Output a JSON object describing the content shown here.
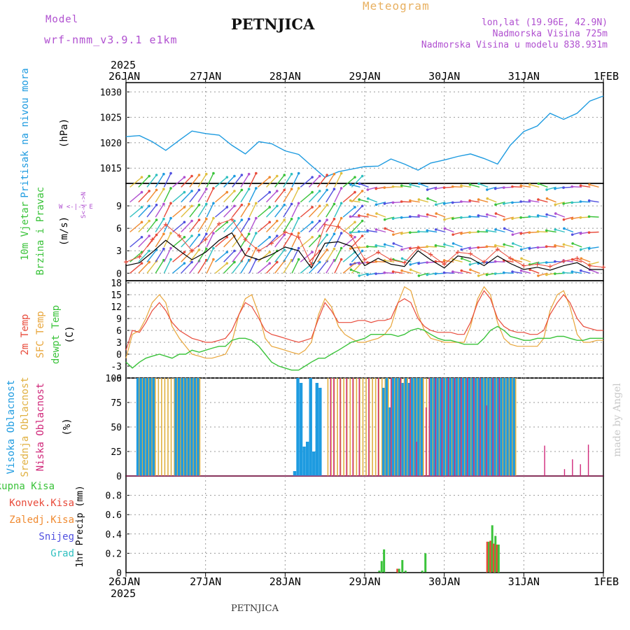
{
  "header": {
    "model_label": "Model",
    "model_value": "wrf-nmm_v3.9.1  e1km",
    "station": "PETNJICA",
    "product": "Meteogram",
    "lonlat": "lon,lat (19.96E, 42.9N)",
    "elevation": "Nadmorska Visina 725m",
    "model_elevation": "Nadmorska Visina u modelu 838.931m",
    "footer_station": "PETNJICA",
    "watermark": "made by Angel"
  },
  "time_axis": {
    "year_top": "2025",
    "year_bottom": "2025",
    "labels": [
      "26JAN",
      "27JAN",
      "28JAN",
      "29JAN",
      "30JAN",
      "31JAN",
      "1FEB"
    ]
  },
  "wind_compass": "W <-|-> E",
  "wind_compass_vertical": "S<-|->N",
  "colors": {
    "pressure": "#1e9be0",
    "temp2m": "#e84a3a",
    "sfc": "#e8a53a",
    "dewpt": "#3ac33a",
    "cloud_high": "#1e9be0",
    "cloud_mid": "#e0b040",
    "cloud_low": "#d0287a",
    "precip_total": "#3ac33a",
    "precip_conv": "#e84a3a",
    "precip_frz": "#f08a30",
    "precip_snow": "#5050e0",
    "precip_grad": "#30c0c0",
    "wind_speed": "#000000",
    "gust": "#e84a3a",
    "model_label": "#b050d0",
    "meteogram_label": "#e8b060"
  },
  "chart_data": [
    {
      "type": "line",
      "panel": "pressure",
      "ylabel_title": "Pritisak na nivou mora",
      "unit": "(hPa)",
      "ylim": [
        1012,
        1031
      ],
      "yticks": [
        1015,
        1020,
        1025,
        1030
      ],
      "x_days": [
        0,
        0.17,
        0.33,
        0.5,
        0.67,
        0.83,
        1.0,
        1.17,
        1.33,
        1.5,
        1.67,
        1.83,
        2.0,
        2.17,
        2.33,
        2.5,
        2.67,
        2.83,
        3.0,
        3.17,
        3.33,
        3.5,
        3.67,
        3.83,
        4.0,
        4.17,
        4.33,
        4.5,
        4.67,
        4.83,
        5.0,
        5.17,
        5.33,
        5.5,
        5.67,
        5.83,
        6.0
      ],
      "series": [
        {
          "values": [
            1021.2,
            1021.4,
            1020.2,
            1018.5,
            1020.5,
            1022.3,
            1021.8,
            1021.5,
            1019.5,
            1017.8,
            1020.2,
            1019.8,
            1018.4,
            1017.7,
            1015.5,
            1013.2,
            1014.3,
            1014.8,
            1015.3,
            1015.4,
            1016.8,
            1015.8,
            1014.6,
            1016.0,
            1016.6,
            1017.3,
            1017.8,
            1016.9,
            1015.8,
            1019.5,
            1022.2,
            1023.3,
            1025.8,
            1024.6,
            1025.8,
            1028.2,
            1029.2
          ]
        }
      ]
    },
    {
      "type": "line",
      "panel": "wind",
      "ylabel_title": "10m Vjetar",
      "ylabel_title2": "Brzina i Pravac",
      "unit": "(m/s)",
      "ylim": [
        -1,
        12
      ],
      "yticks": [
        0,
        3,
        6,
        9
      ],
      "x_days": [
        0,
        0.17,
        0.33,
        0.5,
        0.67,
        0.83,
        1.0,
        1.17,
        1.33,
        1.5,
        1.67,
        1.83,
        2.0,
        2.17,
        2.33,
        2.5,
        2.67,
        2.83,
        3.0,
        3.17,
        3.33,
        3.5,
        3.67,
        3.83,
        4.0,
        4.17,
        4.33,
        4.5,
        4.67,
        4.83,
        5.0,
        5.17,
        5.33,
        5.5,
        5.67,
        5.83,
        6.0
      ],
      "series": [
        {
          "name": "speed",
          "values": [
            1.0,
            1.4,
            2.8,
            4.4,
            3.0,
            1.8,
            2.8,
            4.4,
            5.4,
            2.4,
            1.8,
            2.5,
            3.5,
            3.0,
            0.7,
            4.0,
            4.2,
            3.6,
            1.0,
            2.0,
            1.2,
            0.9,
            3.0,
            1.8,
            0.7,
            2.3,
            2.0,
            1.0,
            2.3,
            1.3,
            0.5,
            0.8,
            0.4,
            1.0,
            1.4,
            0.5,
            0.5
          ]
        },
        {
          "name": "gust",
          "values": [
            1.5,
            2.2,
            4.5,
            6.5,
            5.0,
            3.0,
            4.5,
            6.6,
            7.2,
            4.5,
            3.0,
            4.0,
            5.5,
            4.8,
            1.2,
            6.5,
            6.2,
            5.0,
            1.8,
            2.8,
            1.8,
            1.4,
            3.4,
            2.5,
            1.2,
            2.8,
            2.6,
            1.5,
            3.2,
            2.0,
            1.0,
            1.2,
            0.9,
            1.6,
            2.0,
            1.0,
            0.8
          ]
        }
      ],
      "arrow_rows": [
        0,
        1.5,
        3.5,
        5.5,
        7.5,
        9.5,
        11.5
      ]
    },
    {
      "type": "line",
      "panel": "temperature",
      "ylabel_title": "2m Temp",
      "ylabel_title2": "SFC Temp",
      "ylabel_title3": "dewpt Temp",
      "unit": "(C)",
      "ylim": [
        -6,
        18
      ],
      "yticks": [
        -6,
        -3,
        0,
        3,
        6,
        9,
        12,
        15,
        18
      ],
      "x_days": [
        0,
        0.08,
        0.17,
        0.25,
        0.33,
        0.42,
        0.5,
        0.58,
        0.67,
        0.75,
        0.83,
        0.92,
        1.0,
        1.08,
        1.17,
        1.25,
        1.33,
        1.42,
        1.5,
        1.58,
        1.67,
        1.75,
        1.83,
        1.92,
        2.0,
        2.08,
        2.17,
        2.25,
        2.33,
        2.42,
        2.5,
        2.58,
        2.67,
        2.75,
        2.83,
        2.92,
        3.0,
        3.08,
        3.17,
        3.25,
        3.33,
        3.42,
        3.5,
        3.58,
        3.67,
        3.75,
        3.83,
        3.92,
        4.0,
        4.08,
        4.17,
        4.25,
        4.33,
        4.42,
        4.5,
        4.58,
        4.67,
        4.75,
        4.83,
        4.92,
        5.0,
        5.08,
        5.17,
        5.25,
        5.33,
        5.42,
        5.5,
        5.58,
        5.67,
        5.75,
        5.83,
        5.92,
        6.0
      ],
      "series": [
        {
          "name": "2m",
          "values": [
            1,
            6,
            5.5,
            8,
            11,
            13,
            11,
            8,
            6,
            5,
            4,
            3.5,
            3,
            3,
            3.5,
            4,
            6,
            10,
            13,
            12,
            9,
            6,
            5,
            4.5,
            4,
            3.5,
            3,
            3.5,
            4,
            9,
            13,
            11,
            8,
            8,
            8,
            8.5,
            8.5,
            8,
            8.5,
            8.5,
            9,
            13,
            14,
            13,
            9,
            7,
            6,
            5.5,
            5.5,
            5.5,
            5,
            5,
            8,
            13,
            16,
            14,
            9,
            7,
            6,
            5.5,
            5.5,
            5,
            5,
            6,
            10,
            13,
            15,
            13,
            9,
            7,
            6.5,
            6,
            6
          ]
        },
        {
          "name": "sfc",
          "values": [
            -1,
            5,
            6,
            9,
            13,
            15,
            13,
            7,
            4,
            2,
            0,
            -0.5,
            -1,
            -1,
            -0.5,
            0,
            3,
            10,
            14,
            15,
            10,
            4,
            2,
            1.5,
            1,
            0.5,
            0,
            1,
            3,
            10,
            14,
            12,
            7,
            5,
            4,
            3,
            3,
            3.5,
            4,
            5,
            7,
            13,
            17,
            16,
            10,
            6,
            4,
            3.5,
            3,
            3,
            3,
            3,
            7,
            14,
            17,
            15,
            8,
            4,
            2.5,
            2,
            2,
            2,
            2,
            4,
            11,
            15,
            16,
            12,
            5,
            3,
            3,
            3.5,
            3.5
          ]
        },
        {
          "name": "dewpt",
          "values": [
            -2,
            -3.5,
            -2,
            -1,
            -0.5,
            0,
            -0.5,
            -1,
            0,
            0,
            1,
            0.5,
            1,
            1.5,
            2,
            2,
            3.5,
            4,
            4,
            3.5,
            2,
            0,
            -2,
            -3,
            -3.5,
            -4,
            -4,
            -3,
            -2,
            -1,
            -1,
            0,
            1,
            2,
            3,
            3.5,
            4,
            5,
            5,
            5,
            5,
            4.5,
            5,
            6,
            6.5,
            6,
            5,
            4,
            3.5,
            3.5,
            3,
            2.5,
            2.5,
            2.5,
            4,
            6,
            7,
            6,
            4.5,
            4,
            3.5,
            3.5,
            4,
            4,
            4,
            4.5,
            4.5,
            4,
            3.5,
            3.5,
            4,
            4,
            4
          ]
        }
      ]
    },
    {
      "type": "bar",
      "panel": "clouds",
      "ylabel_title": "Visoka Oblacnost",
      "ylabel_title2": "Srednja Oblacnost",
      "ylabel_title3": "Niska Oblacnost",
      "unit": "(%)",
      "ylim": [
        0,
        100
      ],
      "yticks": [
        0,
        25,
        50,
        75,
        100
      ],
      "x_days": [
        0.15,
        0.19,
        0.23,
        0.27,
        0.31,
        0.35,
        0.39,
        0.43,
        0.47,
        0.51,
        0.55,
        0.59,
        0.63,
        0.67,
        0.71,
        0.75,
        0.79,
        0.83,
        0.87,
        0.91,
        2.12,
        2.16,
        2.2,
        2.24,
        2.28,
        2.32,
        2.36,
        2.4,
        2.44,
        2.52,
        2.56,
        2.6,
        2.64,
        2.68,
        2.72,
        2.76,
        2.8,
        2.84,
        2.88,
        2.92,
        2.96,
        3.0,
        3.04,
        3.08,
        3.12,
        3.16,
        3.2,
        3.24,
        3.28,
        3.32,
        3.36,
        3.4,
        3.44,
        3.48,
        3.52,
        3.56,
        3.6,
        3.64,
        3.68,
        3.72,
        3.76,
        3.8,
        3.84,
        3.88,
        3.92,
        3.96,
        4.0,
        4.04,
        4.08,
        4.12,
        4.16,
        4.2,
        4.24,
        4.28,
        4.32,
        4.36,
        4.4,
        4.44,
        4.48,
        4.52,
        4.56,
        4.6,
        4.64,
        4.68,
        4.72,
        4.76,
        4.8,
        4.84,
        4.88,
        5.25,
        5.5,
        5.6,
        5.7,
        5.8,
        5.85
      ],
      "series": [
        {
          "name": "high",
          "values": [
            100,
            100,
            100,
            100,
            100,
            100,
            0,
            0,
            0,
            0,
            0,
            0,
            100,
            100,
            100,
            100,
            100,
            100,
            100,
            100,
            5,
            100,
            95,
            30,
            35,
            100,
            25,
            95,
            90,
            0,
            0,
            0,
            0,
            0,
            0,
            0,
            0,
            0,
            0,
            0,
            0,
            0,
            0,
            0,
            0,
            0,
            0,
            90,
            100,
            70,
            100,
            100,
            100,
            95,
            100,
            95,
            100,
            100,
            100,
            100,
            0,
            0,
            100,
            100,
            100,
            100,
            100,
            100,
            100,
            100,
            100,
            100,
            100,
            100,
            100,
            100,
            100,
            100,
            100,
            100,
            100,
            100,
            100,
            100,
            100,
            100,
            100,
            100,
            100,
            0,
            0,
            0,
            0,
            0,
            0
          ]
        },
        {
          "name": "mid",
          "values": [
            100,
            100,
            100,
            100,
            100,
            100,
            100,
            100,
            100,
            100,
            100,
            100,
            100,
            100,
            100,
            100,
            100,
            100,
            100,
            100,
            0,
            0,
            0,
            0,
            0,
            0,
            0,
            0,
            0,
            100,
            100,
            100,
            100,
            100,
            100,
            100,
            100,
            100,
            100,
            100,
            100,
            100,
            100,
            100,
            100,
            100,
            100,
            100,
            100,
            100,
            100,
            100,
            100,
            100,
            100,
            100,
            100,
            100,
            100,
            100,
            100,
            100,
            100,
            100,
            100,
            100,
            100,
            100,
            100,
            100,
            100,
            100,
            100,
            100,
            100,
            100,
            100,
            100,
            100,
            100,
            100,
            100,
            100,
            100,
            100,
            100,
            100,
            100,
            100,
            0,
            0,
            0,
            0,
            0,
            0
          ]
        },
        {
          "name": "low",
          "values": [
            0,
            0,
            0,
            0,
            0,
            0,
            0,
            0,
            0,
            0,
            0,
            0,
            0,
            0,
            0,
            0,
            0,
            0,
            0,
            0,
            0,
            0,
            0,
            0,
            0,
            0,
            0,
            0,
            0,
            0,
            100,
            100,
            0,
            100,
            0,
            100,
            0,
            100,
            0,
            100,
            0,
            0,
            100,
            0,
            0,
            100,
            0,
            0,
            0,
            100,
            0,
            0,
            100,
            0,
            0,
            100,
            0,
            35,
            0,
            0,
            70,
            100,
            0,
            100,
            0,
            100,
            0,
            100,
            0,
            100,
            0,
            100,
            0,
            100,
            0,
            100,
            0,
            100,
            0,
            72,
            0,
            100,
            0,
            100,
            0,
            0,
            0,
            0,
            0,
            31,
            7,
            17,
            12,
            32,
            0
          ]
        }
      ]
    },
    {
      "type": "bar",
      "panel": "precip",
      "legend": [
        "Ukupna Kisa",
        "Konvek.Kisa",
        "Zaledj.Kisa",
        "Snijeg",
        "Grad"
      ],
      "ylabel": "1hr Precip (mm)",
      "ylim": [
        0,
        1.0
      ],
      "yticks": [
        0,
        0.2,
        0.4,
        0.6,
        0.8
      ],
      "x_days": [
        3.17,
        3.2,
        3.23,
        3.42,
        3.46,
        3.5,
        3.71,
        3.75,
        4.55,
        4.59,
        4.63,
        4.67
      ],
      "series": [
        {
          "name": "total",
          "values": [
            0.02,
            0.12,
            0.24,
            0.04,
            0.13,
            0.02,
            0.02,
            0.2,
            0.32,
            0.49,
            0.38,
            0.29
          ]
        },
        {
          "name": "conv",
          "values": [
            0,
            0,
            0,
            0.04,
            0,
            0,
            0,
            0,
            0.32,
            0.33,
            0.3,
            0.29
          ]
        }
      ]
    }
  ]
}
